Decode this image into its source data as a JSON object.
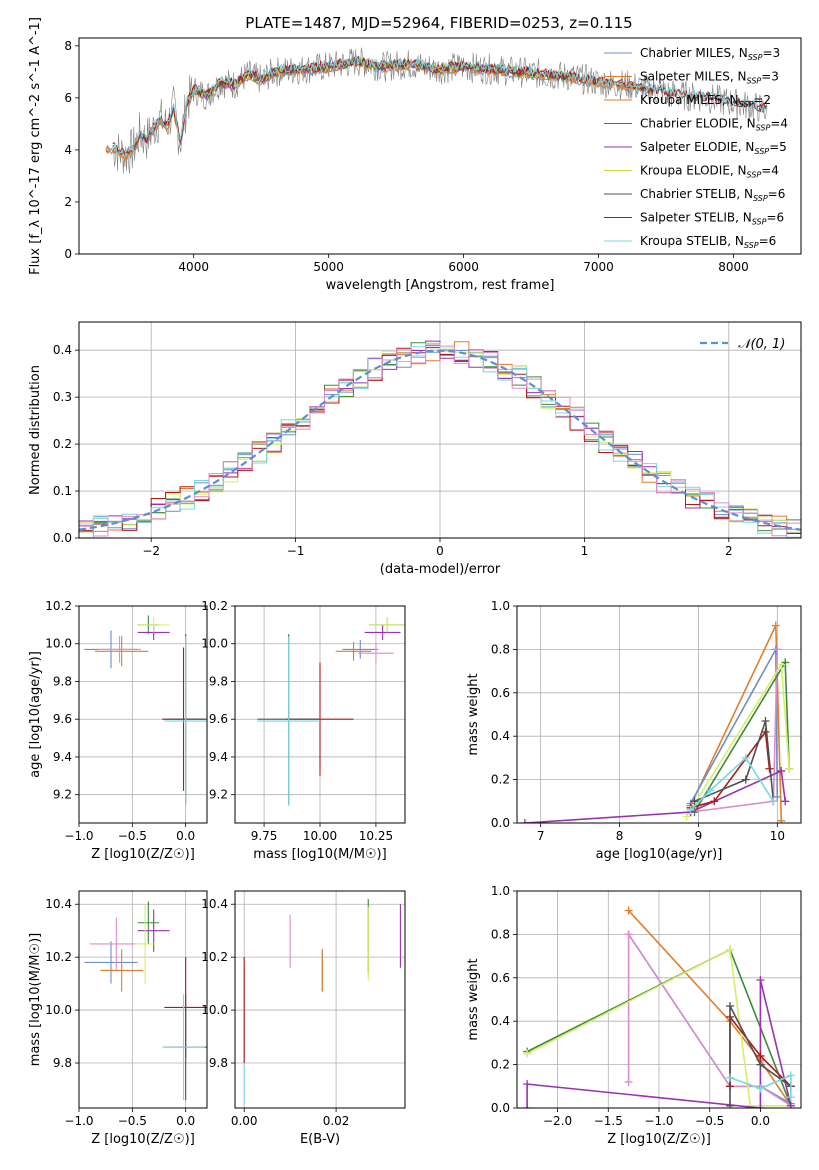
{
  "figure_title": "PLATE=1487, MJD=52964, FIBERID=0253, z=0.115",
  "chart_data": [
    {
      "id": "spectrum",
      "type": "line",
      "xlabel": "wavelength [Angstrom, rest frame]",
      "ylabel": "Flux [f_λ 10^-17 erg cm^-2 s^-1 A^-1]",
      "xlim": [
        3150,
        8500
      ],
      "ylim": [
        0,
        8.3
      ],
      "xticks": [
        "4000",
        "5000",
        "6000",
        "7000",
        "8000"
      ],
      "yticks": [
        "0",
        "2",
        "4",
        "6",
        "8"
      ],
      "legend_position": "upper right",
      "data_trace": {
        "color": "#808080",
        "x": [
          3400,
          3450,
          3500,
          3550,
          3600,
          3650,
          3700,
          3750,
          3800,
          3850,
          3900,
          3950,
          4000,
          4100,
          4200,
          4300,
          4400,
          4500,
          4600,
          4800,
          5000,
          5200,
          5400,
          5600,
          5800,
          6000,
          6200,
          6400,
          6600,
          6800,
          7000,
          7200,
          7400,
          7600,
          7800,
          8000,
          8200,
          8250
        ],
        "y": [
          4.1,
          3.9,
          3.8,
          4.0,
          4.6,
          4.4,
          4.8,
          5.2,
          4.9,
          5.6,
          4.3,
          5.8,
          6.3,
          6.1,
          6.6,
          6.5,
          6.9,
          6.7,
          7.0,
          7.1,
          7.2,
          7.4,
          7.2,
          7.3,
          7.1,
          7.2,
          7.1,
          7.0,
          6.9,
          6.8,
          6.6,
          6.5,
          6.3,
          6.1,
          6.0,
          5.8,
          5.6,
          5.5
        ]
      },
      "series": [
        {
          "name": "Chabrier MILES, N_SSP=3",
          "label_main": "Chabrier MILES, N",
          "label_sub": "SSP",
          "label_tail": "=3",
          "color": "#6a8fd0",
          "xrange": [
            3350,
            7400
          ]
        },
        {
          "name": "Salpeter MILES, N_SSP=3",
          "label_main": "Salpeter MILES, N",
          "label_sub": "SSP",
          "label_tail": "=3",
          "color": "#e07e2c",
          "xrange": [
            3350,
            7400
          ]
        },
        {
          "name": "Kroupa MILES, N_SSP=2",
          "label_main": "Kroupa MILES, N",
          "label_sub": "SSP",
          "label_tail": "=2",
          "color": "#e07e2c",
          "xrange": [
            3350,
            7400
          ]
        },
        {
          "name": "Chabrier ELODIE, N_SSP=4",
          "label_main": "Chabrier ELODIE, N",
          "label_sub": "SSP",
          "label_tail": "=4",
          "color": "#3c8a3c",
          "xrange": [
            3900,
            6800
          ]
        },
        {
          "name": "Salpeter ELODIE, N_SSP=5",
          "label_main": "Salpeter ELODIE, N",
          "label_sub": "SSP",
          "label_tail": "=5",
          "color": "#9b30b0",
          "xrange": [
            3900,
            6800
          ]
        },
        {
          "name": "Kroupa ELODIE, N_SSP=4",
          "label_main": "Kroupa ELODIE, N",
          "label_sub": "SSP",
          "label_tail": "=4",
          "color": "#d4d43c",
          "xrange": [
            3900,
            6800
          ]
        },
        {
          "name": "Chabrier STELIB, N_SSP=6",
          "label_main": "Chabrier STELIB, N",
          "label_sub": "SSP",
          "label_tail": "=6",
          "color": "#505050",
          "xrange": [
            3400,
            8250
          ]
        },
        {
          "name": "Salpeter STELIB, N_SSP=6",
          "label_main": "Salpeter STELIB, N",
          "label_sub": "SSP",
          "label_tail": "=6",
          "color": "#b01818",
          "xrange": [
            3400,
            8250
          ]
        },
        {
          "name": "Kroupa STELIB, N_SSP=6",
          "label_main": "Kroupa STELIB, N",
          "label_sub": "SSP",
          "label_tail": "=6",
          "color": "#78d8e0",
          "xrange": [
            3400,
            8250
          ]
        }
      ]
    },
    {
      "id": "residuals",
      "type": "line",
      "xlabel": "(data-model)/error",
      "ylabel": "Normed distribution",
      "xlim": [
        -2.5,
        2.5
      ],
      "ylim": [
        0,
        0.46
      ],
      "xticks": [
        "−2",
        "−1",
        "0",
        "1",
        "2"
      ],
      "yticks": [
        "0.0",
        "0.1",
        "0.2",
        "0.3",
        "0.4"
      ],
      "grid": true,
      "legend_position": "upper right",
      "gaussian_legend": "𝒩(0, 1)",
      "gaussian_color": "#5b8fd6",
      "histogram_colors": [
        "#6a8fd0",
        "#e07e2c",
        "#3c8a3c",
        "#9b30b0",
        "#d4f06a",
        "#b01818",
        "#78d8e0",
        "#e08cc8"
      ]
    },
    {
      "id": "age_vs_Z",
      "type": "scatter",
      "xlabel": "Z [log10(Z/Z☉)]",
      "ylabel": "age  [log10(age/yr)]",
      "xlim": [
        -1.0,
        0.2
      ],
      "ylim": [
        9.05,
        10.2
      ],
      "xticks": [
        "−1.0",
        "−0.5",
        "0.0"
      ],
      "yticks": [
        "9.2",
        "9.4",
        "9.6",
        "9.8",
        "10.0",
        "10.2"
      ],
      "grid": true,
      "points": [
        {
          "x": -0.7,
          "y": 9.97,
          "xerr": 0.25,
          "yerr": 0.1,
          "color": "#6a8fd0"
        },
        {
          "x": -0.6,
          "y": 9.96,
          "xerr": 0.25,
          "yerr": 0.08,
          "color": "#e07e2c"
        },
        {
          "x": -0.62,
          "y": 9.97,
          "xerr": 0.2,
          "yerr": 0.07,
          "color": "#e08cc8"
        },
        {
          "x": -0.35,
          "y": 10.1,
          "xerr": 0.1,
          "yerr": 0.05,
          "color": "#3c8a3c"
        },
        {
          "x": -0.3,
          "y": 10.06,
          "xerr": 0.15,
          "yerr": 0.04,
          "color": "#9b30b0"
        },
        {
          "x": -0.3,
          "y": 10.1,
          "xerr": 0.15,
          "yerr": 0.04,
          "color": "#d4f06a"
        },
        {
          "x": -0.02,
          "y": 9.6,
          "xerr": 0.2,
          "yerr": 0.38,
          "color": "#b01818"
        },
        {
          "x": 0.0,
          "y": 9.6,
          "xerr": 0.2,
          "yerr": 0.45,
          "color": "#505050"
        },
        {
          "x": 0.0,
          "y": 9.59,
          "xerr": 0.2,
          "yerr": 0.45,
          "color": "#78d8e0"
        }
      ]
    },
    {
      "id": "age_vs_mass",
      "type": "scatter",
      "xlabel": "mass [log10(M/M☉)]",
      "ylabel": "",
      "xlim": [
        9.62,
        10.38
      ],
      "ylim": [
        9.05,
        10.2
      ],
      "xticks": [
        "9.75",
        "10.00",
        "10.25"
      ],
      "yticks": [
        "9.2",
        "9.4",
        "9.6",
        "9.8",
        "10.0",
        "10.2"
      ],
      "grid": true,
      "points": [
        {
          "x": 10.18,
          "y": 9.97,
          "xerr": 0.08,
          "yerr": 0.05,
          "color": "#6a8fd0"
        },
        {
          "x": 10.15,
          "y": 9.96,
          "xerr": 0.08,
          "yerr": 0.05,
          "color": "#e07e2c"
        },
        {
          "x": 10.25,
          "y": 9.95,
          "xerr": 0.08,
          "yerr": 0.05,
          "color": "#e08cc8"
        },
        {
          "x": 10.3,
          "y": 10.1,
          "xerr": 0.08,
          "yerr": 0.04,
          "color": "#3c8a3c"
        },
        {
          "x": 10.28,
          "y": 10.06,
          "xerr": 0.08,
          "yerr": 0.04,
          "color": "#9b30b0"
        },
        {
          "x": 10.3,
          "y": 10.1,
          "xerr": 0.08,
          "yerr": 0.04,
          "color": "#d4f06a"
        },
        {
          "x": 10.0,
          "y": 9.6,
          "xerr": 0.15,
          "yerr": 0.3,
          "color": "#b01818"
        },
        {
          "x": 9.86,
          "y": 9.6,
          "xerr": 0.14,
          "yerr": 0.45,
          "color": "#505050"
        },
        {
          "x": 9.86,
          "y": 9.59,
          "xerr": 0.14,
          "yerr": 0.45,
          "color": "#78d8e0"
        }
      ]
    },
    {
      "id": "weight_vs_age",
      "type": "line",
      "xlabel": "age  [log10(age/yr)]",
      "ylabel": "mass weight",
      "xlim": [
        6.7,
        10.3
      ],
      "ylim": [
        0,
        1.0
      ],
      "xticks": [
        "7",
        "8",
        "9",
        "10"
      ],
      "yticks": [
        "0.0",
        "0.2",
        "0.4",
        "0.6",
        "0.8",
        "1.0"
      ],
      "grid": true,
      "series": [
        {
          "color": "#e07e2c",
          "x": [
            8.9,
            9.98,
            10.05
          ],
          "y": [
            0.08,
            0.91,
            0.01
          ]
        },
        {
          "color": "#6a8fd0",
          "x": [
            8.9,
            9.98,
            10.0
          ],
          "y": [
            0.09,
            0.8,
            0.12
          ]
        },
        {
          "color": "#e08cc8",
          "x": [
            8.9,
            9.95,
            10.0
          ],
          "y": [
            0.05,
            0.1,
            0.8
          ]
        },
        {
          "color": "#3c8a3c",
          "x": [
            8.95,
            10.1,
            10.15
          ],
          "y": [
            0.05,
            0.74,
            0.25
          ]
        },
        {
          "color": "#d4f06a",
          "x": [
            8.85,
            10.05,
            10.15
          ],
          "y": [
            0.03,
            0.73,
            0.25
          ]
        },
        {
          "color": "#9b30b0",
          "x": [
            6.8,
            8.9,
            10.05,
            10.1
          ],
          "y": [
            0.0,
            0.05,
            0.24,
            0.1
          ]
        },
        {
          "color": "#b01818",
          "x": [
            8.9,
            9.2,
            9.85,
            9.9
          ],
          "y": [
            0.07,
            0.1,
            0.42,
            0.25
          ]
        },
        {
          "color": "#505050",
          "x": [
            8.95,
            9.6,
            9.85,
            9.95
          ],
          "y": [
            0.1,
            0.2,
            0.47,
            0.1
          ]
        },
        {
          "color": "#78d8e0",
          "x": [
            8.9,
            9.15,
            9.6,
            9.95
          ],
          "y": [
            0.06,
            0.15,
            0.3,
            0.1
          ]
        }
      ]
    },
    {
      "id": "mass_vs_Z",
      "type": "scatter",
      "xlabel": "Z [log10(Z/Z☉)]",
      "ylabel": "mass [log10(M/M☉)]",
      "xlim": [
        -1.0,
        0.2
      ],
      "ylim": [
        9.63,
        10.45
      ],
      "xticks": [
        "−1.0",
        "−0.5",
        "0.0"
      ],
      "yticks": [
        "9.8",
        "10.0",
        "10.2",
        "10.4"
      ],
      "grid": true,
      "points": [
        {
          "x": -0.7,
          "y": 10.18,
          "xerr": 0.25,
          "yerr": 0.08,
          "color": "#6a8fd0"
        },
        {
          "x": -0.6,
          "y": 10.15,
          "xerr": 0.2,
          "yerr": 0.08,
          "color": "#e07e2c"
        },
        {
          "x": -0.65,
          "y": 10.25,
          "xerr": 0.25,
          "yerr": 0.1,
          "color": "#e08cc8"
        },
        {
          "x": -0.35,
          "y": 10.33,
          "xerr": 0.1,
          "yerr": 0.08,
          "color": "#3c8a3c"
        },
        {
          "x": -0.3,
          "y": 10.3,
          "xerr": 0.15,
          "yerr": 0.08,
          "color": "#9b30b0"
        },
        {
          "x": -0.38,
          "y": 10.25,
          "xerr": 0.1,
          "yerr": 0.15,
          "color": "#d4f06a"
        },
        {
          "x": 0.0,
          "y": 10.01,
          "xerr": 0.2,
          "yerr": 0.19,
          "color": "#b01818"
        },
        {
          "x": 0.0,
          "y": 9.86,
          "xerr": 0.2,
          "yerr": 0.2,
          "color": "#505050"
        },
        {
          "x": -0.02,
          "y": 9.86,
          "xerr": 0.2,
          "yerr": 0.2,
          "color": "#78d8e0"
        }
      ]
    },
    {
      "id": "mass_vs_EBV",
      "type": "scatter",
      "xlabel": "E(B-V)",
      "ylabel": "",
      "xlim": [
        -0.002,
        0.035
      ],
      "ylim": [
        9.63,
        10.45
      ],
      "xticks": [
        "0.00",
        "0.02"
      ],
      "yticks": [
        "9.8",
        "10.0",
        "10.2",
        "10.4"
      ],
      "grid": true,
      "points": [
        {
          "x": 0.0,
          "y": 9.9,
          "yerr": 0.25,
          "color": "#78d8e0"
        },
        {
          "x": 0.0,
          "y": 10.0,
          "yerr": 0.2,
          "color": "#b01818"
        },
        {
          "x": 0.01,
          "y": 10.26,
          "yerr": 0.1,
          "color": "#e08cc8"
        },
        {
          "x": 0.017,
          "y": 10.15,
          "yerr": 0.08,
          "color": "#6a8fd0"
        },
        {
          "x": 0.017,
          "y": 10.15,
          "yerr": 0.08,
          "color": "#e07e2c"
        },
        {
          "x": 0.027,
          "y": 10.28,
          "yerr": 0.14,
          "color": "#3c8a3c"
        },
        {
          "x": 0.027,
          "y": 10.25,
          "yerr": 0.14,
          "color": "#d4f06a"
        },
        {
          "x": 0.034,
          "y": 10.28,
          "yerr": 0.12,
          "color": "#9b30b0"
        }
      ]
    },
    {
      "id": "weight_vs_Z",
      "type": "line",
      "xlabel": "Z [log10(Z/Z☉)]",
      "ylabel": "mass weight",
      "xlim": [
        -2.4,
        0.4
      ],
      "ylim": [
        0,
        1.0
      ],
      "xticks": [
        "−2.0",
        "−1.5",
        "−1.0",
        "−0.5",
        "0.0"
      ],
      "yticks": [
        "0.0",
        "0.2",
        "0.4",
        "0.6",
        "0.8",
        "1.0"
      ],
      "grid": true,
      "series": [
        {
          "color": "#e07e2c",
          "x": [
            -1.3,
            -0.3,
            0.0,
            0.3
          ],
          "y": [
            0.91,
            0.4,
            0.22,
            0.01
          ]
        },
        {
          "color": "#6a8fd0",
          "x": [
            -1.3,
            -0.3,
            0.0,
            0.3
          ],
          "y": [
            0.8,
            0.1,
            0.1,
            0.02
          ]
        },
        {
          "color": "#e08cc8",
          "x": [
            -1.3,
            -1.3,
            -0.3,
            0.0,
            0.3
          ],
          "y": [
            0.12,
            0.8,
            0.1,
            0.1,
            0.01
          ]
        },
        {
          "color": "#3c8a3c",
          "x": [
            -2.3,
            -0.3,
            0.3
          ],
          "y": [
            0.26,
            0.73,
            0.01
          ]
        },
        {
          "color": "#d4f06a",
          "x": [
            -2.3,
            -0.3,
            -0.1,
            0.3
          ],
          "y": [
            0.25,
            0.73,
            0.01,
            0.01
          ]
        },
        {
          "color": "#9b30b0",
          "x": [
            -2.3,
            -2.3,
            0.0,
            0.0,
            0.3
          ],
          "y": [
            0.0,
            0.11,
            0.0,
            0.59,
            0.01
          ]
        },
        {
          "color": "#b01818",
          "x": [
            -0.3,
            -0.3,
            0.0,
            0.3
          ],
          "y": [
            0.1,
            0.42,
            0.24,
            0.1
          ]
        },
        {
          "color": "#505050",
          "x": [
            -0.3,
            -0.3,
            0.0,
            0.3
          ],
          "y": [
            0.01,
            0.47,
            0.2,
            0.1
          ]
        },
        {
          "color": "#78d8e0",
          "x": [
            -0.3,
            0.0,
            0.3,
            0.3
          ],
          "y": [
            0.14,
            0.09,
            0.15,
            0.05
          ]
        }
      ]
    }
  ]
}
